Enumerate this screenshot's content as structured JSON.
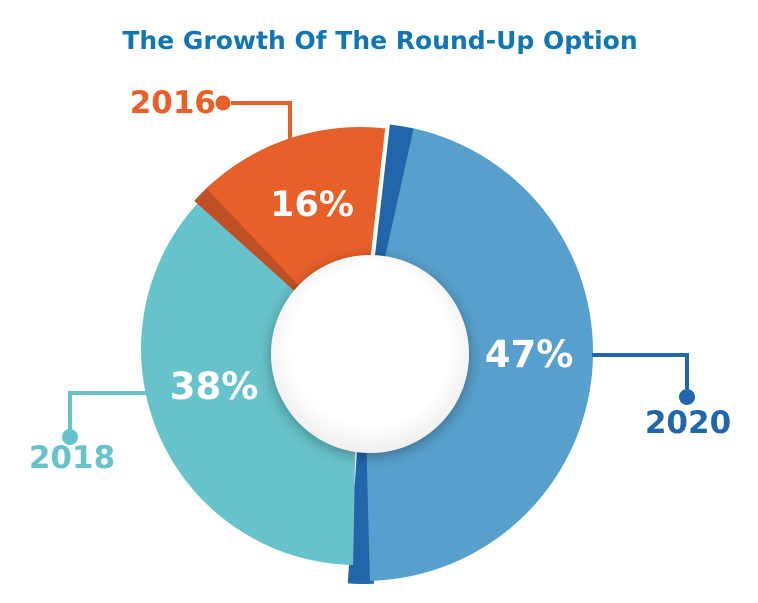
{
  "title": "The Growth Of The Round-Up Option",
  "colors": {
    "background": "#ffffff",
    "title_text": "#1076b4",
    "slice_2020": "#57a0cd",
    "slice_2020_side": "#2165ab",
    "slice_2018": "#67c3cb",
    "slice_2016": "#e7602a",
    "slice_2016_side": "#bf4f24",
    "percent_text": "#ffffff",
    "label_2020": "#2165ab",
    "label_2018": "#67c3cb",
    "label_2016": "#e7602a"
  },
  "chart_data": {
    "type": "pie",
    "variant": "3d exploded donut infographic",
    "title": "The Growth Of The Round-Up Option",
    "categories": [
      "2020",
      "2018",
      "2016"
    ],
    "values": [
      47,
      38,
      16
    ],
    "unit": "%",
    "slice_labels": [
      "47%",
      "38%",
      "16%"
    ],
    "slice_colors": [
      "#57a0cd",
      "#67c3cb",
      "#e7602a"
    ],
    "clockwise_from_top": true,
    "start_angle_deg": 11.5,
    "legend": "none",
    "callouts": [
      {
        "label": "2020",
        "color": "#2165ab",
        "position": "right"
      },
      {
        "label": "2018",
        "color": "#67c3cb",
        "position": "bottom-left"
      },
      {
        "label": "2016",
        "color": "#e7602a",
        "position": "top-left"
      }
    ]
  }
}
